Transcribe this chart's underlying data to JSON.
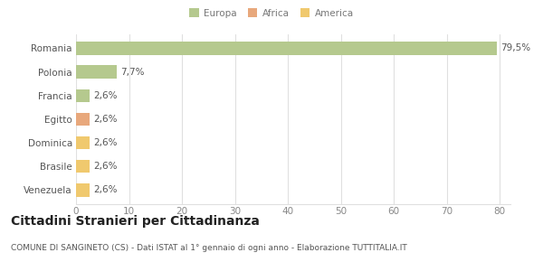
{
  "categories": [
    "Romania",
    "Polonia",
    "Francia",
    "Egitto",
    "Dominica",
    "Brasile",
    "Venezuela"
  ],
  "values": [
    79.5,
    7.7,
    2.6,
    2.6,
    2.6,
    2.6,
    2.6
  ],
  "labels": [
    "79,5%",
    "7,7%",
    "2,6%",
    "2,6%",
    "2,6%",
    "2,6%",
    "2,6%"
  ],
  "colors": [
    "#b5c98e",
    "#b5c98e",
    "#b5c98e",
    "#e8a87c",
    "#f0c96e",
    "#f0c96e",
    "#f0c96e"
  ],
  "legend_labels": [
    "Europa",
    "Africa",
    "America"
  ],
  "legend_colors": [
    "#b5c98e",
    "#e8a87c",
    "#f0c96e"
  ],
  "xlim": [
    0,
    82
  ],
  "xticks": [
    0,
    10,
    20,
    30,
    40,
    50,
    60,
    70,
    80
  ],
  "title": "Cittadini Stranieri per Cittadinanza",
  "subtitle": "COMUNE DI SANGINETO (CS) - Dati ISTAT al 1° gennaio di ogni anno - Elaborazione TUTTITALIA.IT",
  "bg_color": "#ffffff",
  "grid_color": "#e0e0e0",
  "bar_height": 0.55,
  "label_fontsize": 7.5,
  "tick_fontsize": 7.5,
  "title_fontsize": 10,
  "subtitle_fontsize": 6.5
}
